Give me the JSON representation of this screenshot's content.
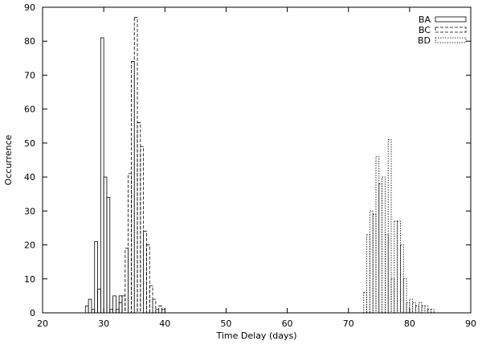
{
  "chart_data": {
    "type": "bar",
    "xlabel": "Time Delay (days)",
    "ylabel": "Occurrence",
    "xlim": [
      20,
      90
    ],
    "ylim": [
      0,
      90
    ],
    "x_ticks": [
      20,
      30,
      40,
      50,
      60,
      70,
      80,
      90
    ],
    "y_ticks": [
      0,
      10,
      20,
      30,
      40,
      50,
      60,
      70,
      80,
      90
    ],
    "grid": false,
    "legend_position": "top-right",
    "bin_width": 0.5,
    "series": [
      {
        "name": "BA",
        "style": "solid",
        "x": [
          27,
          27.5,
          28,
          28.5,
          29,
          29.5,
          30,
          30.5,
          31,
          31.5,
          32,
          32.5
        ],
        "values": [
          2,
          4,
          1,
          21,
          7,
          81,
          40,
          34,
          1,
          5,
          1,
          5
        ]
      },
      {
        "name": "BC",
        "style": "dashed",
        "x": [
          32.5,
          33,
          33.5,
          34,
          34.5,
          35,
          35.5,
          36,
          36.5,
          37,
          37.5,
          38,
          38.5,
          39,
          39.5
        ],
        "values": [
          3,
          5,
          19,
          41,
          74,
          87,
          56,
          49,
          24,
          20,
          8,
          4,
          1,
          2,
          1
        ]
      },
      {
        "name": "BD",
        "style": "dotted",
        "x": [
          72.5,
          73,
          73.5,
          74,
          74.5,
          75,
          75.5,
          76,
          76.5,
          77,
          77.5,
          78,
          78.5,
          79,
          79.5,
          80,
          80.5,
          81,
          81.5,
          82,
          82.5,
          83,
          83.5
        ],
        "values": [
          6,
          23,
          30,
          29,
          46,
          38,
          40,
          23,
          51,
          10,
          27,
          27,
          20,
          10,
          3,
          4,
          3,
          2,
          3,
          2,
          2,
          1,
          1
        ]
      }
    ]
  }
}
